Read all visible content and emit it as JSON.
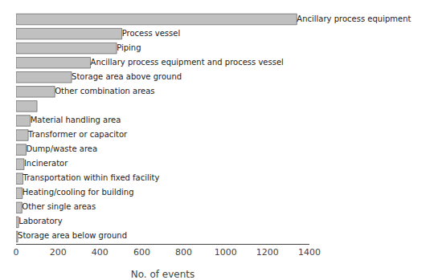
{
  "chart_data": {
    "type": "bar",
    "orientation": "horizontal",
    "categories": [
      "Storage area below ground",
      "Laboratory",
      "Other single areas",
      "Heating/cooling for building",
      "Transportation within fixed facility",
      "Incinerator",
      "Dump/waste area",
      "Transformer or capacitor",
      "Material handling area",
      null,
      "Other combination areas",
      "Storage area above ground",
      "Ancillary process equipment and process vessel",
      "Piping",
      "Process vessel",
      "Ancillary process equipment"
    ],
    "values": [
      8,
      12,
      28,
      30,
      33,
      38,
      48,
      58,
      68,
      100,
      185,
      265,
      355,
      480,
      505,
      1340
    ],
    "color": "#c0c0c0",
    "xlabel": "No. of events",
    "xlim": [
      0,
      1400
    ],
    "xticks": [
      0,
      200,
      400,
      600,
      800,
      1000,
      1200,
      1400
    ],
    "grid": false,
    "tick_labels": "x"
  }
}
